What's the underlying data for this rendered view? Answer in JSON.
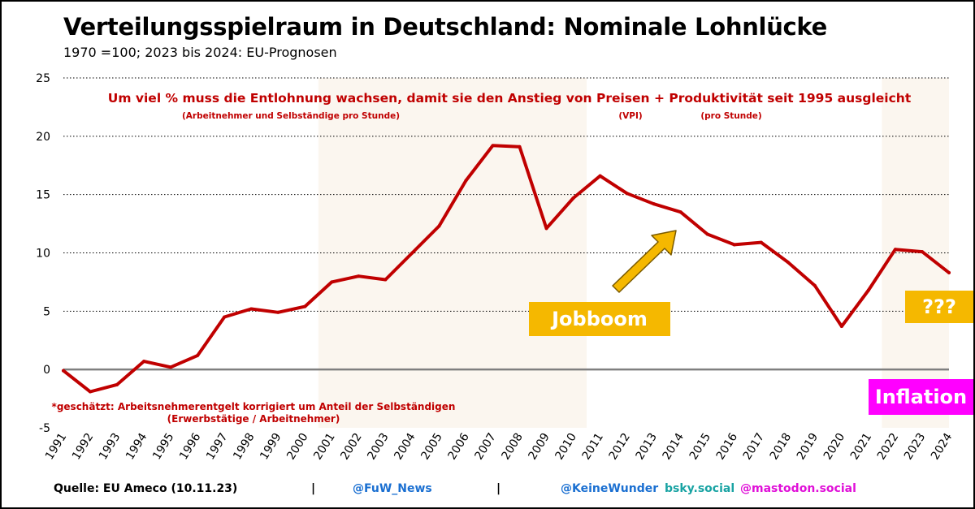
{
  "header": {
    "title": "Verteilungsspielraum in Deutschland: Nominale Lohnlücke",
    "subtitle": "1970 =100; 2023 bis 2024: EU-Prognosen"
  },
  "annotations": {
    "headline": "Um viel % muss die Entlohnung wachsen, damit sie den Anstieg von Preisen + Produktivität seit 1995 ausgleicht",
    "note_worker": "(Arbeitnehmer und Selbständige pro Stunde)",
    "note_vpi": "(VPI)",
    "note_hour": "(pro Stunde)",
    "footnote_1": "*geschätzt: Arbeitsnehmerentgelt korrigiert um Anteil der Selbständigen",
    "footnote_2": "(Erwerbstätige / Arbeitnehmer)",
    "jobboom": "Jobboom",
    "question": "???",
    "inflation": "Inflation"
  },
  "colors": {
    "line": "#c00000",
    "annotation_text": "#c00000",
    "shade": "#fbf6ef",
    "jobboom_box": "#f5b800",
    "arrow": "#f5b800",
    "inflation_box": "#ff00ff"
  },
  "footer": {
    "source": "Quelle: EU Ameco (10.11.23)",
    "separator": "|",
    "fuw": "@FuW_News",
    "keinewunder": "@KeineWunder",
    "bsky": "bsky.social",
    "mastodon": "@mastodon.social"
  },
  "chart_data": {
    "type": "line",
    "title": "Verteilungsspielraum in Deutschland: Nominale Lohnlücke",
    "subtitle": "1970 =100; 2023 bis 2024: EU-Prognosen",
    "ylim": [
      -5,
      25
    ],
    "yticks": [
      -5,
      0,
      5,
      10,
      15,
      20,
      25
    ],
    "grid": "horizontal dotted",
    "categories": [
      "1991",
      "1992",
      "1993",
      "1994",
      "1995",
      "1996",
      "1997",
      "1998",
      "1999",
      "2000",
      "2001",
      "2002",
      "2003",
      "2004",
      "2005",
      "2006",
      "2007",
      "2008",
      "2009",
      "2010",
      "2011",
      "2012",
      "2013",
      "2014",
      "2015",
      "2016",
      "2017",
      "2018",
      "2019",
      "2020",
      "2021",
      "2022",
      "2023",
      "2024"
    ],
    "series": [
      {
        "values": [
          -0.1,
          -1.9,
          -1.3,
          0.7,
          0.2,
          1.2,
          4.5,
          5.2,
          4.9,
          5.4,
          7.5,
          8.0,
          7.7,
          10.0,
          12.3,
          16.2,
          19.2,
          19.1,
          12.1,
          14.7,
          16.6,
          15.1,
          14.2,
          13.5,
          11.6,
          10.7,
          10.9,
          9.2,
          7.2,
          3.7,
          6.8,
          10.3,
          10.1,
          8.3
        ]
      }
    ],
    "shaded_ranges": [
      [
        "2000",
        "2010"
      ],
      [
        "2021",
        "2024"
      ]
    ]
  }
}
